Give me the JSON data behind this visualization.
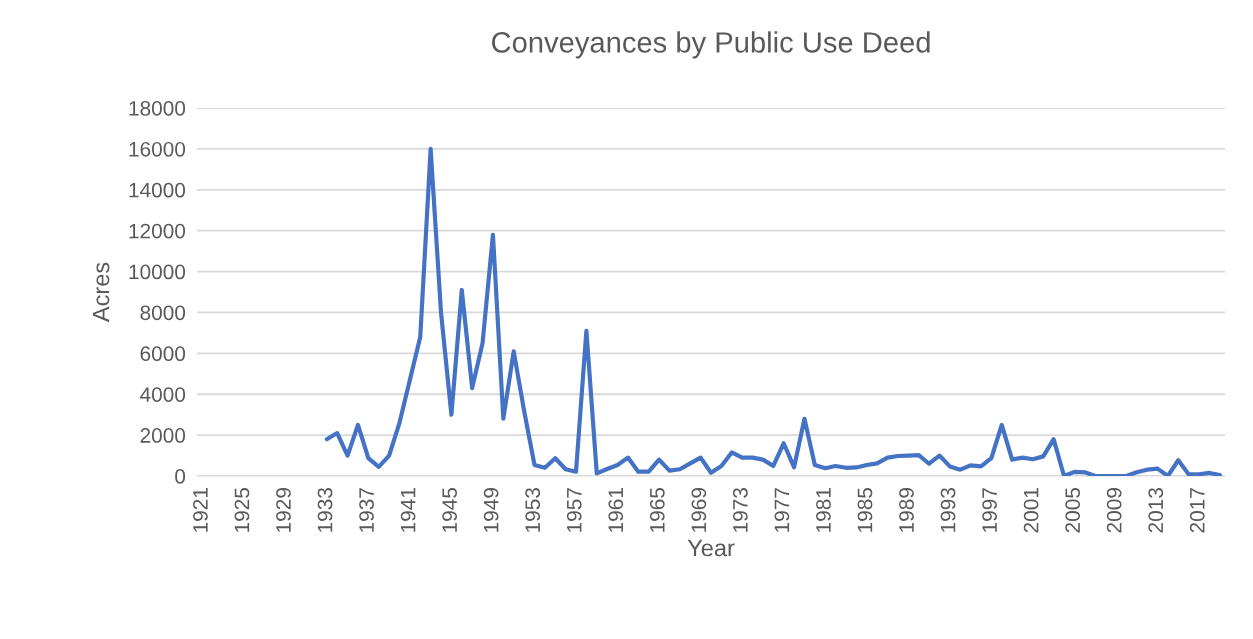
{
  "chart_data": {
    "type": "line",
    "title": "Conveyances by Public Use Deed",
    "xlabel": "Year",
    "ylabel": "Acres",
    "categories": [
      "1921",
      null,
      null,
      null,
      "1925",
      null,
      null,
      null,
      "1929",
      null,
      null,
      null,
      "1933",
      null,
      null,
      null,
      "1937",
      null,
      null,
      null,
      "1941",
      null,
      null,
      null,
      "1945",
      null,
      null,
      null,
      "1949",
      null,
      null,
      null,
      "1953",
      null,
      null,
      null,
      "1957",
      null,
      null,
      null,
      "1961",
      null,
      null,
      null,
      "1965",
      null,
      null,
      null,
      "1969",
      null,
      null,
      null,
      "1973",
      null,
      null,
      null,
      "1977",
      null,
      null,
      null,
      "1981",
      null,
      null,
      null,
      "1985",
      null,
      null,
      null,
      "1989",
      null,
      null,
      null,
      "1993",
      null,
      null,
      null,
      "1997",
      null,
      null,
      null,
      "2001",
      null,
      null,
      null,
      "2005",
      null,
      null,
      null,
      "2009",
      null,
      null,
      null,
      "2013",
      null,
      null,
      null,
      "2017",
      null,
      null
    ],
    "series": [
      {
        "color": "#4472c4",
        "values": [
          null,
          null,
          null,
          null,
          null,
          null,
          null,
          null,
          null,
          null,
          null,
          null,
          1800,
          2100,
          1000,
          2500,
          870,
          450,
          1000,
          2600,
          4700,
          6800,
          16000,
          8000,
          3000,
          9100,
          4300,
          6500,
          11800,
          2800,
          6100,
          3200,
          540,
          400,
          870,
          330,
          210,
          7100,
          130,
          340,
          540,
          900,
          210,
          210,
          800,
          260,
          330,
          620,
          900,
          160,
          490,
          1150,
          900,
          900,
          800,
          490,
          1600,
          420,
          2800,
          540,
          380,
          490,
          400,
          420,
          540,
          620,
          900,
          980,
          1000,
          1020,
          600,
          1000,
          470,
          310,
          520,
          470,
          880,
          2500,
          800,
          900,
          820,
          960,
          1800,
          0,
          200,
          180,
          0,
          0,
          0,
          0,
          180,
          310,
          360,
          0,
          770,
          80,
          80,
          150,
          50
        ]
      }
    ],
    "ylim": [
      0,
      18000
    ],
    "yticks": [
      0,
      2000,
      4000,
      6000,
      8000,
      10000,
      12000,
      14000,
      16000,
      18000
    ],
    "grid": "y",
    "marker": "none",
    "line_style": "solid"
  }
}
